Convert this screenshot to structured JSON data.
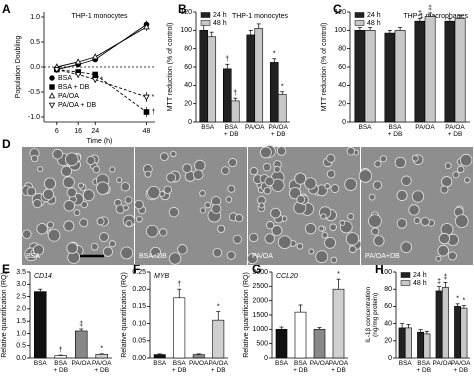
{
  "chart_data": [
    {
      "type": "line",
      "panel": "A",
      "title": "THP-1 monocytes",
      "ylabel": "Population Doubling",
      "xlabel": "Time (h)",
      "x": [
        6,
        16,
        24,
        48
      ],
      "xlim": [
        0,
        52
      ],
      "xticks": [
        6,
        16,
        24,
        48
      ],
      "ylim": [
        -1.1,
        1.1
      ],
      "yticks": [
        {
          "value": 1,
          "label": "1.0"
        },
        0.5,
        {
          "value": 0,
          "label": "0.0"
        },
        -0.5,
        {
          "value": -1,
          "label": "-1.0"
        }
      ],
      "legend": "lower left",
      "series": [
        {
          "name": "BSA",
          "color": "#000000",
          "marker": "circle",
          "filled": true,
          "line_style": "solid",
          "values": [
            -0.05,
            0.05,
            0.15,
            0.85
          ],
          "errors": [
            0.03,
            0.04,
            0.05,
            0.08
          ],
          "markers": [
            null,
            null,
            null,
            null
          ]
        },
        {
          "name": "BSA + DB",
          "color": "#000000",
          "marker": "square",
          "filled": true,
          "line_style": "dashed",
          "values": [
            -0.05,
            -0.1,
            -0.15,
            -0.9
          ],
          "errors": [
            0.03,
            0.04,
            0.05,
            0.1
          ],
          "markers": [
            null,
            null,
            null,
            "†"
          ]
        },
        {
          "name": "PA/OA",
          "color": "#000000",
          "marker": "triangle",
          "filled": false,
          "line_style": "solid",
          "values": [
            0,
            0.1,
            0.2,
            0.8
          ],
          "errors": [
            0.03,
            0.04,
            0.05,
            0.08
          ],
          "markers": [
            null,
            null,
            null,
            null
          ]
        },
        {
          "name": "PA/OA + DB",
          "color": "#000000",
          "marker": "triangle-down",
          "filled": false,
          "line_style": "dashed",
          "values": [
            -0.05,
            -0.15,
            -0.25,
            -0.6
          ],
          "errors": [
            0.03,
            0.04,
            0.06,
            0.1
          ],
          "markers": [
            null,
            null,
            "*",
            "*"
          ]
        }
      ]
    },
    {
      "type": "bar",
      "panel": "B",
      "title": "THP-1 monocytes",
      "ylabel": "MTT reduction (% of control)",
      "categories": [
        "BSA",
        "BSA\n+ DB",
        "PA/OA",
        "PA/OA\n+ DB"
      ],
      "ylim": [
        0,
        120
      ],
      "yticks": [
        0,
        20,
        40,
        60,
        80,
        100,
        120
      ],
      "legend": "upper left",
      "series": [
        {
          "name": "24 h",
          "color": "#222222",
          "values": [
            100,
            58,
            95,
            65
          ],
          "errors": [
            6,
            5,
            5,
            4
          ],
          "markers": [
            null,
            "†",
            null,
            "*"
          ]
        },
        {
          "name": "48 h",
          "color": "#c8c8c8",
          "values": [
            93,
            23,
            102,
            30
          ],
          "errors": [
            5,
            3,
            5,
            3
          ],
          "markers": [
            null,
            "†",
            null,
            "*"
          ]
        }
      ]
    },
    {
      "type": "bar",
      "panel": "C",
      "title": "THP-1 macrophages",
      "ylabel": "MTT reduction (% of control)",
      "categories": [
        "BSA",
        "BSA\n+ DB",
        "PA/OA",
        "PA/OA\n+ DB"
      ],
      "ylim": [
        0,
        120
      ],
      "yticks": [
        0,
        20,
        40,
        60,
        80,
        100,
        120
      ],
      "legend": "upper left",
      "series": [
        {
          "name": "24 h",
          "color": "#222222",
          "values": [
            100,
            97,
            110,
            110
          ],
          "errors": [
            3,
            3,
            3,
            3
          ],
          "markers": [
            null,
            null,
            "‡",
            null
          ]
        },
        {
          "name": "48 h",
          "color": "#c8c8c8",
          "values": [
            100,
            100,
            115,
            113
          ],
          "errors": [
            3,
            3,
            4,
            3
          ],
          "markers": [
            null,
            null,
            "‡",
            null
          ]
        }
      ]
    },
    {
      "type": "bar",
      "panel": "E",
      "title": "CD14",
      "ylabel": "Relative quantification (RQ)",
      "categories": [
        "BSA",
        "BSA\n+ DB",
        "PA/OA",
        "PA/OA\n+ DB"
      ],
      "ylim": [
        0,
        3.5
      ],
      "yticks": [
        {
          "value": 0,
          "label": "0.0"
        },
        0.5,
        {
          "value": 1,
          "label": "1.0"
        },
        1.5,
        {
          "value": 2,
          "label": "2.0"
        },
        2.5,
        {
          "value": 3,
          "label": "3.0"
        },
        3.5
      ],
      "values": [
        2.7,
        0.1,
        1.1,
        0.15
      ],
      "errors": [
        0.1,
        0.02,
        0.08,
        0.02
      ],
      "colors": [
        "#111111",
        "#ffffff",
        "#888888",
        "#d0d0d0"
      ],
      "markers": [
        null,
        "†",
        "‡",
        "*"
      ]
    },
    {
      "type": "bar",
      "panel": "F",
      "title": "MYB",
      "ylabel": "Relative quantification (RQ)",
      "categories": [
        "BSA",
        "BSA\n+ DB",
        "PA/OA",
        "PA/OA\n+ DB"
      ],
      "ylim": [
        0,
        0.25
      ],
      "yticks": [
        {
          "value": 0,
          "label": "0.00"
        },
        0.05,
        {
          "value": 0.1,
          "label": "0.10"
        },
        0.15,
        {
          "value": 0.2,
          "label": "0.20"
        },
        0.25
      ],
      "values": [
        0.01,
        0.175,
        0.01,
        0.11
      ],
      "errors": [
        0.002,
        0.025,
        0.002,
        0.025
      ],
      "colors": [
        "#111111",
        "#ffffff",
        "#888888",
        "#d0d0d0"
      ],
      "markers": [
        null,
        "†",
        null,
        "*"
      ]
    },
    {
      "type": "bar",
      "panel": "G",
      "title": "CCL20",
      "ylabel": "Relative quantification (RQ)",
      "categories": [
        "BSA",
        "BSA\n+ DB",
        "PA/OA",
        "PA/OA\n+ DB"
      ],
      "ylim": [
        0,
        3000
      ],
      "yticks": [
        0,
        500,
        1000,
        1500,
        2000,
        2500,
        3000
      ],
      "values": [
        1000,
        1600,
        1000,
        2400
      ],
      "errors": [
        80,
        250,
        60,
        350
      ],
      "colors": [
        "#111111",
        "#ffffff",
        "#888888",
        "#d0d0d0"
      ],
      "markers": [
        null,
        null,
        null,
        "*"
      ]
    },
    {
      "type": "bar",
      "panel": "H",
      "ylabel": "IL-1β concentration\n(ng/mg protein)",
      "categories": [
        "BSA",
        "BSA\n+ DB",
        "PA/OA",
        "PA/OA\n+ DB"
      ],
      "ylim": [
        0,
        100
      ],
      "yticks": [
        0,
        20,
        40,
        60,
        80,
        100
      ],
      "legend": "upper left",
      "series": [
        {
          "name": "24 h",
          "color": "#222222",
          "values": [
            35,
            30,
            78,
            60
          ],
          "errors": [
            5,
            3,
            5,
            3
          ],
          "markers": [
            null,
            null,
            "‡",
            "*"
          ]
        },
        {
          "name": "48 h",
          "color": "#c8c8c8",
          "values": [
            35,
            28,
            82,
            58
          ],
          "errors": [
            4,
            3,
            6,
            3
          ],
          "markers": [
            null,
            null,
            "‡",
            "*"
          ]
        }
      ]
    }
  ],
  "micrographs": {
    "panel": "D",
    "labels": [
      "BSA",
      "BSA+DB",
      "PA/OA",
      "PA/OA+DB"
    ]
  }
}
